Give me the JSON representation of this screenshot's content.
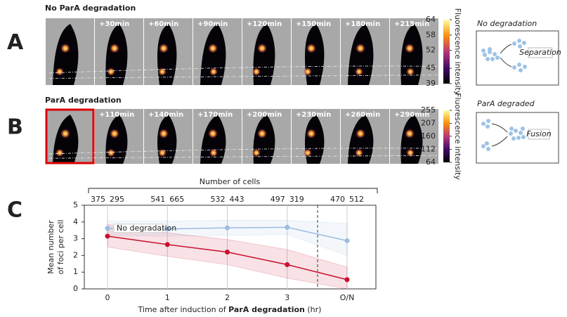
{
  "panels": [
    {
      "letter": "A",
      "title": "No ParA degradation",
      "frames": [
        "+30min",
        "+60min",
        "+90min",
        "+120min",
        "+150min",
        "+180min",
        "+215min"
      ],
      "colorbar": {
        "label": "Fluorescence intensity",
        "lim": [
          39,
          64
        ],
        "ticks": [
          39,
          45,
          52,
          58,
          64
        ]
      },
      "schematic": {
        "title": "No degradation",
        "label": "Separation"
      }
    },
    {
      "letter": "B",
      "title": "ParA degradation",
      "frames": [
        "+110min",
        "+140min",
        "+170min",
        "+200min",
        "+230min",
        "+260min",
        "+290min"
      ],
      "colorbar": {
        "label": "Fluorescence intensity",
        "lim": [
          64,
          255
        ],
        "ticks": [
          64,
          112,
          160,
          207,
          255
        ]
      },
      "schematic": {
        "title": "ParA degraded",
        "label": "Fusion"
      }
    }
  ],
  "chart_data": {
    "type": "line",
    "letter": "C",
    "counts_title": "Number of cells",
    "categories": [
      "0",
      "1",
      "2",
      "3",
      "O/N"
    ],
    "series": [
      {
        "name": "No degradation",
        "color": "#9dbbe0",
        "values": [
          3.62,
          3.58,
          3.65,
          3.68,
          2.88
        ],
        "band_high": [
          4.05,
          4.05,
          4.1,
          4.1,
          3.9
        ],
        "band_low": [
          3.2,
          3.15,
          3.2,
          3.25,
          2.0
        ],
        "cell_counts": [
          375,
          541,
          532,
          497,
          470
        ]
      },
      {
        "color": "#c8102e",
        "values": [
          3.15,
          2.65,
          2.2,
          1.45,
          0.55
        ],
        "band_high": [
          3.85,
          3.35,
          2.95,
          2.35,
          1.3
        ],
        "band_low": [
          2.5,
          1.95,
          1.45,
          0.65,
          0.0
        ],
        "cell_counts": [
          295,
          665,
          443,
          319,
          512
        ]
      }
    ],
    "ylim": [
      0,
      5
    ],
    "yticks": [
      0,
      1,
      2,
      3,
      4,
      5
    ],
    "grid": true,
    "ylabel": [
      "Mean number",
      "of foci per cell"
    ],
    "xlabel": [
      "Time after induction of ",
      "ParA degradation",
      " (hr)"
    ]
  }
}
